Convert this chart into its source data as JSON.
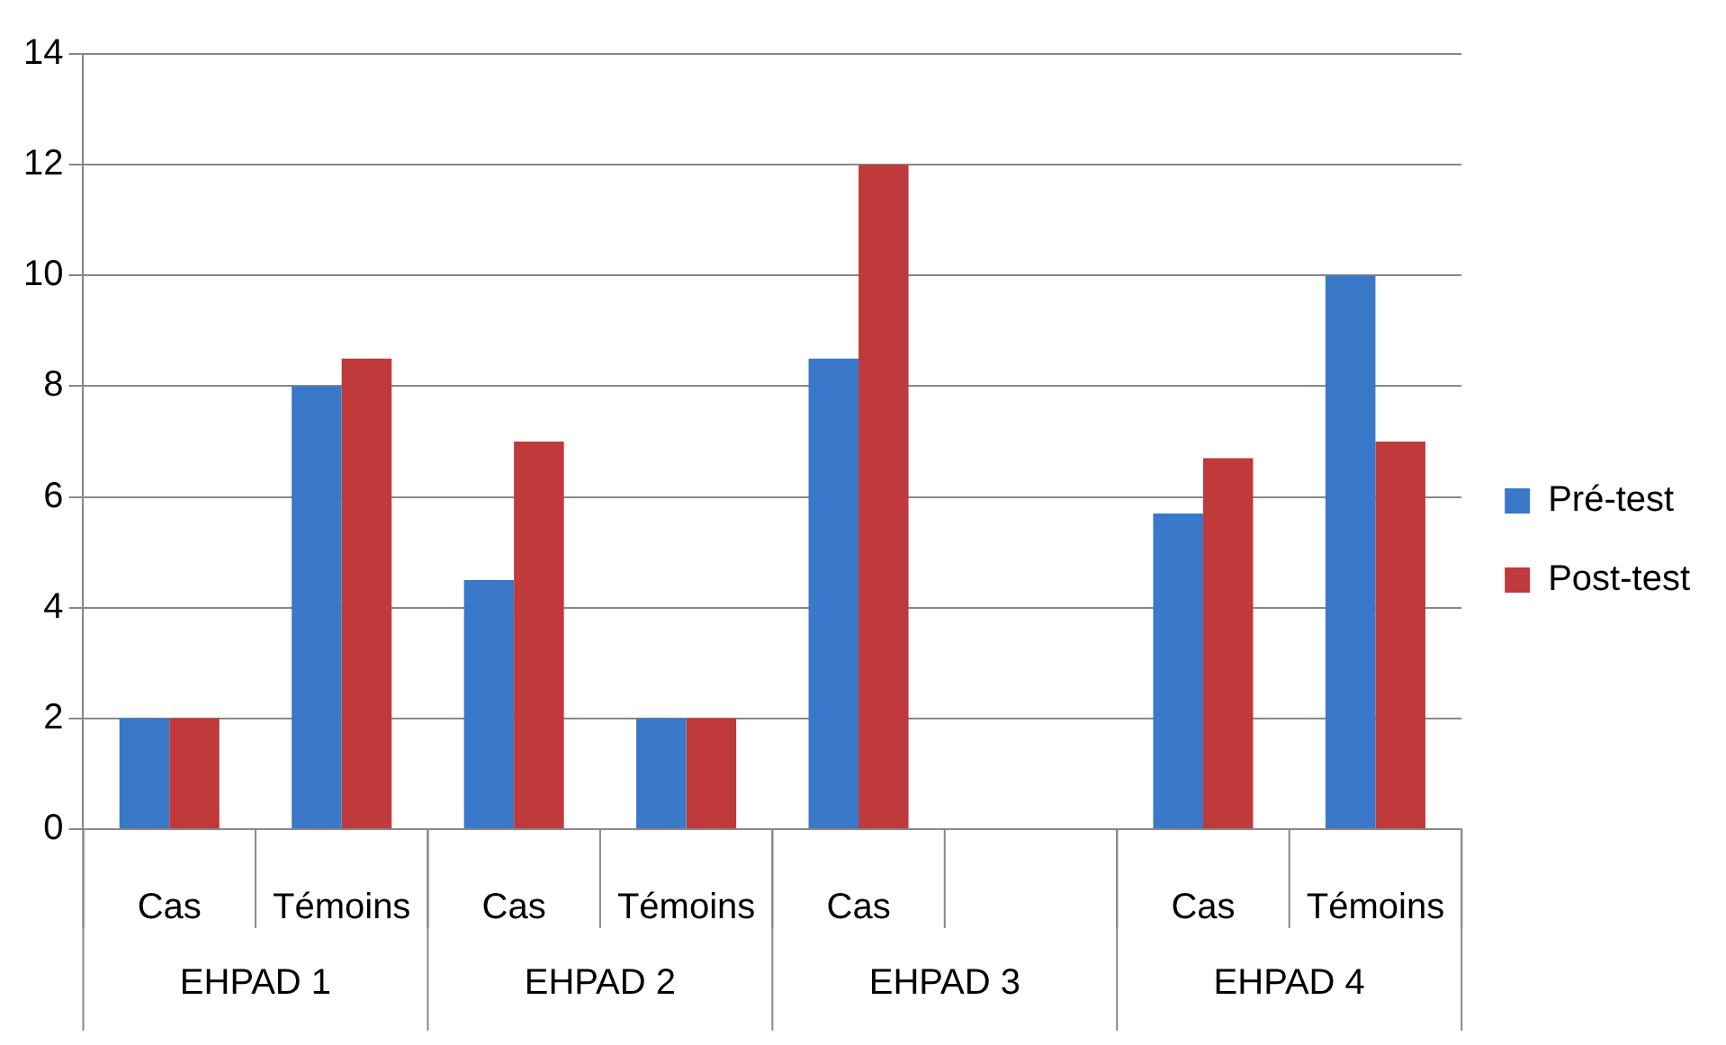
{
  "chart_data": {
    "type": "bar",
    "categories": [
      "Cas",
      "Témoins",
      "Cas",
      "Témoins",
      "Cas",
      null,
      "Cas",
      "Témoins"
    ],
    "series": [
      {
        "name": "Pré-test",
        "color": "#3a78c9",
        "values": [
          2,
          8,
          4.5,
          2,
          8.5,
          null,
          5.7,
          10
        ]
      },
      {
        "name": "Post-test",
        "color": "#c0393b",
        "values": [
          2,
          8.5,
          7,
          2,
          12,
          null,
          6.7,
          7
        ]
      }
    ],
    "ylim": [
      0,
      14
    ],
    "yticks": [
      0,
      2,
      4,
      6,
      8,
      10,
      12,
      14
    ],
    "grid": "y",
    "legend": "right",
    "annotations": [
      "EHPAD 1",
      "EHPAD 2",
      "EHPAD 3",
      "EHPAD 4"
    ]
  }
}
